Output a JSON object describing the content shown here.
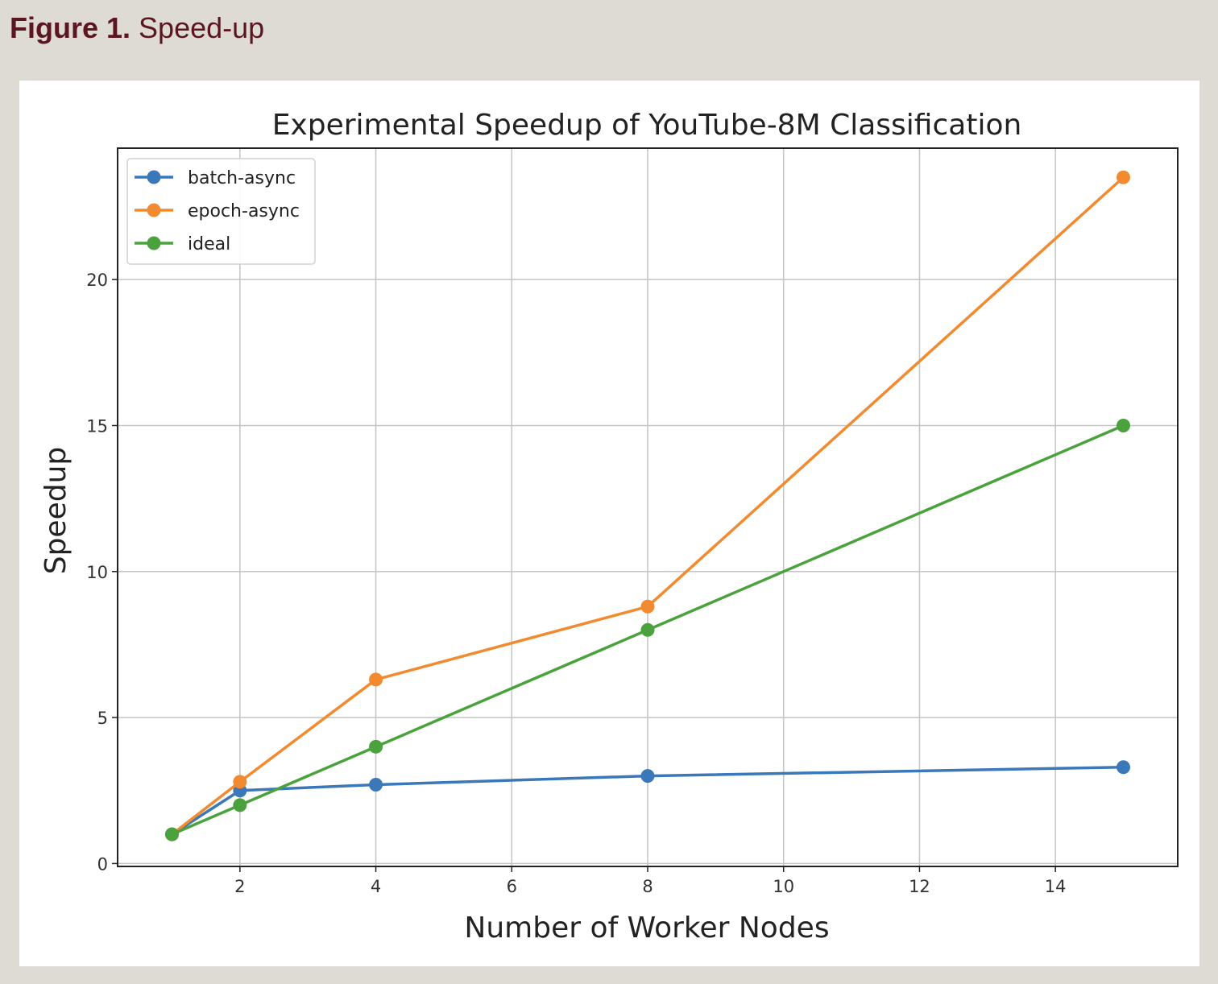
{
  "caption": {
    "label": "Figure 1.",
    "text": "Speed-up"
  },
  "chart_data": {
    "type": "line",
    "title": "Experimental Speedup of YouTube-8M Classification",
    "xlabel": "Number of Worker Nodes",
    "ylabel": "Speedup",
    "xlim": [
      0.2,
      15.8
    ],
    "ylim": [
      -0.1,
      24.5
    ],
    "xticks": [
      2,
      4,
      6,
      8,
      10,
      12,
      14
    ],
    "yticks": [
      0,
      5,
      10,
      15,
      20
    ],
    "grid": true,
    "legend_position": "upper-left",
    "x": [
      1,
      2,
      4,
      8,
      15
    ],
    "series": [
      {
        "name": "batch-async",
        "color": "#3a78b9",
        "values": [
          1.0,
          2.5,
          2.7,
          3.0,
          3.3
        ]
      },
      {
        "name": "epoch-async",
        "color": "#f28a30",
        "values": [
          1.0,
          2.8,
          6.3,
          8.8,
          23.5
        ]
      },
      {
        "name": "ideal",
        "color": "#4aa23c",
        "values": [
          1.0,
          2.0,
          4.0,
          8.0,
          15.0
        ]
      }
    ]
  }
}
